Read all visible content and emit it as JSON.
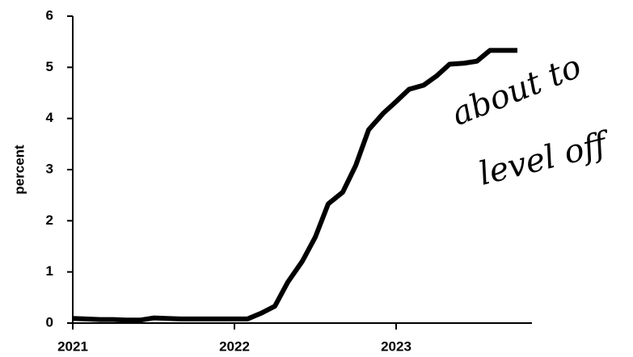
{
  "chart_data": {
    "type": "line",
    "ylabel": "percent",
    "x": [
      2021.0,
      2021.08,
      2021.17,
      2021.25,
      2021.33,
      2021.42,
      2021.5,
      2021.58,
      2021.67,
      2021.75,
      2021.83,
      2021.92,
      2022.0,
      2022.08,
      2022.17,
      2022.25,
      2022.33,
      2022.42,
      2022.5,
      2022.58,
      2022.67,
      2022.75,
      2022.83,
      2022.92,
      2023.0,
      2023.08,
      2023.17,
      2023.25,
      2023.33,
      2023.42,
      2023.5,
      2023.58,
      2023.67,
      2023.75
    ],
    "series": [
      {
        "color": "#000000",
        "values": [
          0.09,
          0.08,
          0.07,
          0.07,
          0.06,
          0.06,
          0.1,
          0.09,
          0.08,
          0.08,
          0.08,
          0.08,
          0.08,
          0.08,
          0.2,
          0.33,
          0.8,
          1.21,
          1.68,
          2.33,
          2.56,
          3.08,
          3.78,
          4.1,
          4.33,
          4.57,
          4.65,
          4.83,
          5.06,
          5.08,
          5.12,
          5.33,
          5.33,
          5.33
        ]
      }
    ],
    "xlim": [
      2021,
      2023.84
    ],
    "xticks": [
      2021,
      2022,
      2023
    ],
    "ylim": [
      0,
      6
    ],
    "yticks": [
      0,
      1,
      2,
      3,
      4,
      5,
      6
    ],
    "annotations": [
      "about to",
      "level off"
    ]
  }
}
